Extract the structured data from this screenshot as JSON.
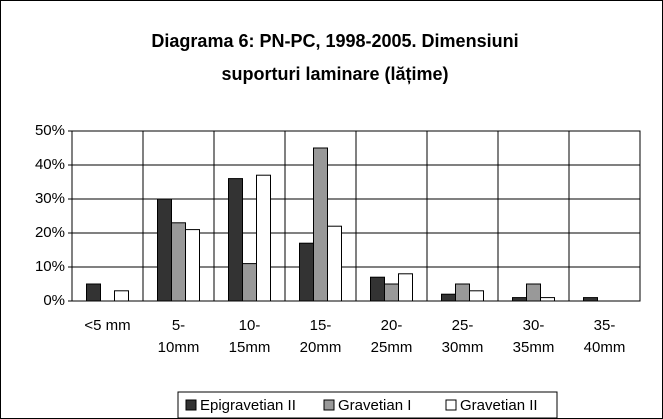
{
  "chart_data": {
    "type": "bar",
    "title": [
      "Diagrama 6: PN-PC, 1998-2005. Dimensiuni",
      "suporturi laminare (lățime)"
    ],
    "categories": [
      [
        "<5 mm"
      ],
      [
        "5-",
        "10mm"
      ],
      [
        "10-",
        "15mm"
      ],
      [
        "15-",
        "20mm"
      ],
      [
        "20-",
        "25mm"
      ],
      [
        "25-",
        "30mm"
      ],
      [
        "30-",
        "35mm"
      ],
      [
        "35-",
        "40mm"
      ]
    ],
    "series": [
      {
        "name": "Epigravetian II",
        "color": "#333333",
        "values": [
          5,
          30,
          36,
          17,
          7,
          2,
          1,
          1
        ]
      },
      {
        "name": "Gravetian I",
        "color": "#999999",
        "values": [
          0,
          23,
          11,
          45,
          5,
          5,
          5,
          0
        ]
      },
      {
        "name": "Gravetian II",
        "color": "#ffffff",
        "values": [
          3,
          21,
          37,
          22,
          8,
          3,
          1,
          0
        ]
      }
    ],
    "ylim": [
      0,
      50
    ],
    "yticks": [
      {
        "value": 0,
        "label": "0%"
      },
      {
        "value": 10,
        "label": "10%"
      },
      {
        "value": 20,
        "label": "20%"
      },
      {
        "value": 30,
        "label": "30%"
      },
      {
        "value": 40,
        "label": "40%"
      },
      {
        "value": 50,
        "label": "50%"
      }
    ],
    "grid": true,
    "legend": "bottom"
  }
}
